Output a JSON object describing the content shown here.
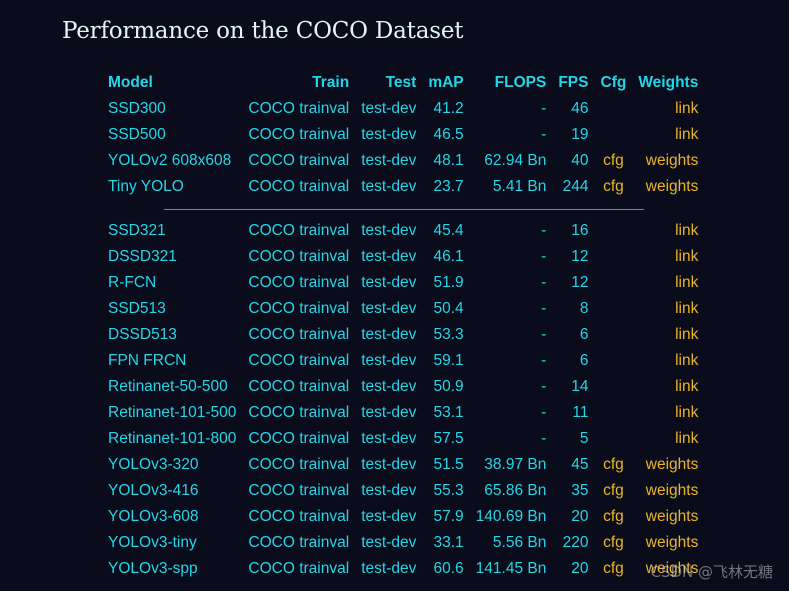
{
  "title": "Performance on the COCO Dataset",
  "columns": {
    "model": "Model",
    "train": "Train",
    "test": "Test",
    "map": "mAP",
    "flops": "FLOPS",
    "fps": "FPS",
    "cfg": "Cfg",
    "weights": "Weights"
  },
  "colors": {
    "background": "#0a0c1b",
    "text_primary": "#22d6e8",
    "link_color": "#eab628",
    "title_color": "#e6f4f6"
  },
  "group1": [
    {
      "model": "SSD300",
      "train": "COCO trainval",
      "test": "test-dev",
      "map": "41.2",
      "flops": "-",
      "fps": "46",
      "cfg": "",
      "weights": "link"
    },
    {
      "model": "SSD500",
      "train": "COCO trainval",
      "test": "test-dev",
      "map": "46.5",
      "flops": "-",
      "fps": "19",
      "cfg": "",
      "weights": "link"
    },
    {
      "model": "YOLOv2 608x608",
      "train": "COCO trainval",
      "test": "test-dev",
      "map": "48.1",
      "flops": "62.94 Bn",
      "fps": "40",
      "cfg": "cfg",
      "weights": "weights"
    },
    {
      "model": "Tiny YOLO",
      "train": "COCO trainval",
      "test": "test-dev",
      "map": "23.7",
      "flops": "5.41 Bn",
      "fps": "244",
      "cfg": "cfg",
      "weights": "weights"
    }
  ],
  "group2": [
    {
      "model": "SSD321",
      "train": "COCO trainval",
      "test": "test-dev",
      "map": "45.4",
      "flops": "-",
      "fps": "16",
      "cfg": "",
      "weights": "link"
    },
    {
      "model": "DSSD321",
      "train": "COCO trainval",
      "test": "test-dev",
      "map": "46.1",
      "flops": "-",
      "fps": "12",
      "cfg": "",
      "weights": "link"
    },
    {
      "model": "R-FCN",
      "train": "COCO trainval",
      "test": "test-dev",
      "map": "51.9",
      "flops": "-",
      "fps": "12",
      "cfg": "",
      "weights": "link"
    },
    {
      "model": "SSD513",
      "train": "COCO trainval",
      "test": "test-dev",
      "map": "50.4",
      "flops": "-",
      "fps": "8",
      "cfg": "",
      "weights": "link"
    },
    {
      "model": "DSSD513",
      "train": "COCO trainval",
      "test": "test-dev",
      "map": "53.3",
      "flops": "-",
      "fps": "6",
      "cfg": "",
      "weights": "link"
    },
    {
      "model": "FPN FRCN",
      "train": "COCO trainval",
      "test": "test-dev",
      "map": "59.1",
      "flops": "-",
      "fps": "6",
      "cfg": "",
      "weights": "link"
    },
    {
      "model": "Retinanet-50-500",
      "train": "COCO trainval",
      "test": "test-dev",
      "map": "50.9",
      "flops": "-",
      "fps": "14",
      "cfg": "",
      "weights": "link"
    },
    {
      "model": "Retinanet-101-500",
      "train": "COCO trainval",
      "test": "test-dev",
      "map": "53.1",
      "flops": "-",
      "fps": "11",
      "cfg": "",
      "weights": "link"
    },
    {
      "model": "Retinanet-101-800",
      "train": "COCO trainval",
      "test": "test-dev",
      "map": "57.5",
      "flops": "-",
      "fps": "5",
      "cfg": "",
      "weights": "link"
    },
    {
      "model": "YOLOv3-320",
      "train": "COCO trainval",
      "test": "test-dev",
      "map": "51.5",
      "flops": "38.97 Bn",
      "fps": "45",
      "cfg": "cfg",
      "weights": "weights"
    },
    {
      "model": "YOLOv3-416",
      "train": "COCO trainval",
      "test": "test-dev",
      "map": "55.3",
      "flops": "65.86 Bn",
      "fps": "35",
      "cfg": "cfg",
      "weights": "weights"
    },
    {
      "model": "YOLOv3-608",
      "train": "COCO trainval",
      "test": "test-dev",
      "map": "57.9",
      "flops": "140.69 Bn",
      "fps": "20",
      "cfg": "cfg",
      "weights": "weights"
    },
    {
      "model": "YOLOv3-tiny",
      "train": "COCO trainval",
      "test": "test-dev",
      "map": "33.1",
      "flops": "5.56 Bn",
      "fps": "220",
      "cfg": "cfg",
      "weights": "weights"
    },
    {
      "model": "YOLOv3-spp",
      "train": "COCO trainval",
      "test": "test-dev",
      "map": "60.6",
      "flops": "141.45 Bn",
      "fps": "20",
      "cfg": "cfg",
      "weights": "weights"
    }
  ],
  "watermark": "CSDN @飞林无糖"
}
